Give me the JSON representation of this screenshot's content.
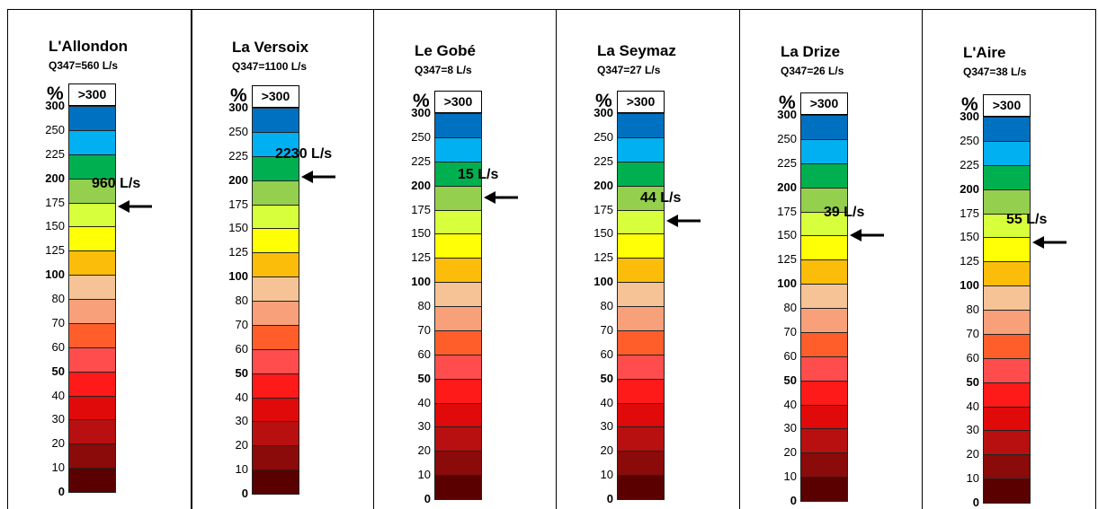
{
  "chart_data": {
    "type": "bar",
    "unit_label": "%",
    "overflow_label": ">300",
    "scale": {
      "thresholds": [
        0,
        10,
        20,
        30,
        40,
        50,
        60,
        70,
        80,
        100,
        125,
        150,
        175,
        200,
        225,
        250,
        300
      ],
      "bold_thresholds": [
        0,
        50,
        100,
        200,
        300
      ],
      "band_colors": [
        "#5a0000",
        "#8b0a0a",
        "#b81010",
        "#e00a0a",
        "#ff1a1a",
        "#ff4d4d",
        "#ff5e2b",
        "#f7a07a",
        "#f5c396",
        "#fbbd0a",
        "#ffff05",
        "#d7ff3c",
        "#94cf4d",
        "#00b050",
        "#00b0f0",
        "#0070c0",
        "#7030a0"
      ]
    },
    "panels": [
      {
        "name": "L'Allondon",
        "q347": "Q347=560 L/s",
        "flow_label": "960 L/s",
        "pct": 171
      },
      {
        "name": "La Versoix",
        "q347": "Q347=1100 L/s",
        "flow_label": "2230 L/s",
        "pct": 203
      },
      {
        "name": "Le Gobé",
        "q347": "Q347=8 L/s",
        "flow_label": "15 L/s",
        "pct": 188
      },
      {
        "name": "La Seymaz",
        "q347": "Q347=27 L/s",
        "flow_label": "44 L/s",
        "pct": 163
      },
      {
        "name": "La Drize",
        "q347": "Q347=26 L/s",
        "flow_label": "39 L/s",
        "pct": 150
      },
      {
        "name": "L'Aire",
        "q347": "Q347=38 L/s",
        "flow_label": "55 L/s",
        "pct": 145
      }
    ]
  }
}
